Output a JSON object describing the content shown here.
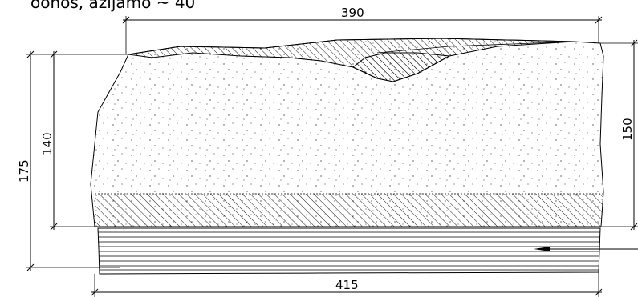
{
  "drawing": {
    "caption": "oonos, azijamo ~ 40",
    "dimensions": {
      "top_width": "390",
      "bottom_width": "415",
      "left_outer_height": "175",
      "left_inner_height": "140",
      "right_height": "150"
    }
  }
}
